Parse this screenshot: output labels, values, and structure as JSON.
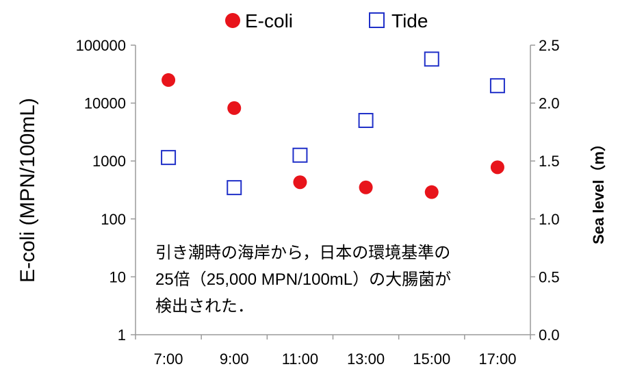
{
  "chart_data": {
    "type": "scatter",
    "x_categories": [
      "7:00",
      "9:00",
      "11:00",
      "13:00",
      "15:00",
      "17:00"
    ],
    "series": [
      {
        "name": "E-coli",
        "axis": "left",
        "marker": "filled-circle",
        "color": "#e8141b",
        "values": [
          25000,
          8200,
          430,
          350,
          290,
          780
        ]
      },
      {
        "name": "Tide",
        "axis": "right",
        "marker": "open-square",
        "color": "#1f2fc8",
        "values": [
          1.53,
          1.27,
          1.55,
          1.85,
          2.38,
          2.15
        ]
      }
    ],
    "y_left": {
      "label": "E-coli (MPN/100mL)",
      "scale": "log",
      "range": [
        1,
        100000
      ],
      "ticks": [
        "1",
        "10",
        "100",
        "1000",
        "10000",
        "100000"
      ]
    },
    "y_right": {
      "label": "Sea level（m）",
      "scale": "linear",
      "range": [
        0,
        2.5
      ],
      "ticks": [
        "0.0",
        "0.5",
        "1.0",
        "1.5",
        "2.0",
        "2.5"
      ]
    },
    "legend_position": "top",
    "grid": false,
    "annotation": [
      "引き潮時の海岸から，日本の環境基準の",
      "25倍（25,000 MPN/100mL）の大腸菌が",
      "検出された．"
    ]
  }
}
